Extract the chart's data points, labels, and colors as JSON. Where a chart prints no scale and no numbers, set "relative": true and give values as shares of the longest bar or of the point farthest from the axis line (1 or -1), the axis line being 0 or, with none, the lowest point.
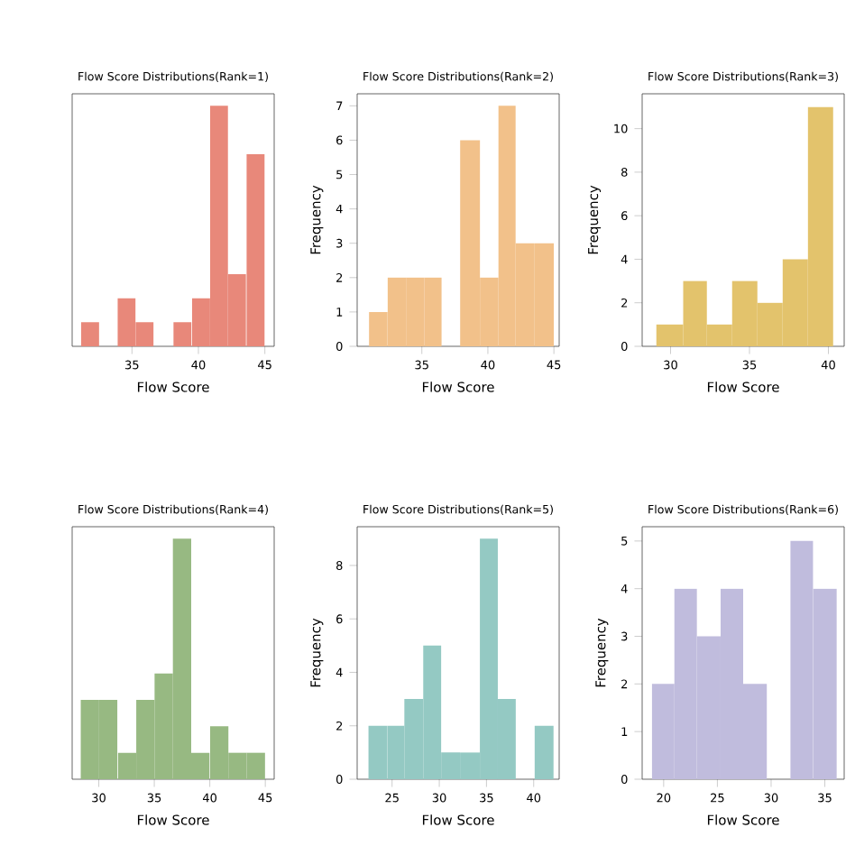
{
  "chart_data": [
    {
      "type": "bar",
      "title": "Flow Score Distributions(Rank=1)",
      "xlabel": "Flow Score",
      "relative": true,
      "color": "#e8887a",
      "x": [
        31.85,
        33.2,
        34.6,
        35.95,
        37.35,
        38.8,
        40.2,
        41.55,
        42.9,
        44.3
      ],
      "values": [
        0.1,
        0,
        0.2,
        0.1,
        0,
        0.1,
        0.2,
        1,
        0.3,
        0.8
      ],
      "xlim": [
        30.5,
        45.7
      ],
      "xticks": [
        35,
        40,
        45
      ]
    },
    {
      "type": "histogram",
      "title": "Flow Score Distributions(Rank=2)",
      "xlabel": "Flow Score",
      "ylabel": "Frequency",
      "color": "#f2c18a",
      "bins": [
        31.0,
        32.4,
        33.8,
        35.2,
        36.5,
        37.9,
        39.4,
        40.8,
        42.1,
        43.5,
        45.0
      ],
      "values": [
        1,
        2,
        2,
        2,
        0,
        6,
        2,
        7,
        3,
        3
      ],
      "xlim": [
        30.1,
        45.4
      ],
      "ylim": [
        0,
        7.35
      ],
      "xticks": [
        35,
        40,
        45
      ],
      "yticks": [
        0,
        1,
        2,
        3,
        4,
        5,
        6,
        7
      ]
    },
    {
      "type": "histogram",
      "title": "Flow Score Distributions(Rank=3)",
      "xlabel": "Flow Score",
      "ylabel": "Frequency",
      "color": "#e3c36c",
      "bins": [
        29.1,
        30.8,
        32.3,
        33.9,
        35.5,
        37.1,
        38.7,
        40.3
      ],
      "values": [
        1,
        3,
        1,
        3,
        2,
        4,
        11
      ],
      "xlim": [
        28.2,
        41.0
      ],
      "ylim": [
        0,
        11.6
      ],
      "xticks": [
        30,
        35,
        40
      ],
      "yticks": [
        0,
        2,
        4,
        6,
        8,
        10
      ]
    },
    {
      "type": "bar",
      "title": "Flow Score Distributions(Rank=4)",
      "xlabel": "Flow Score",
      "relative": true,
      "color": "#97b982",
      "x": [
        29.2,
        30.85,
        32.55,
        34.2,
        35.85,
        37.5,
        39.15,
        40.85,
        42.5,
        44.15
      ],
      "values": [
        0.33,
        0.33,
        0.11,
        0.33,
        0.44,
        1,
        0.11,
        0.22,
        0.11,
        0.11
      ],
      "xlim": [
        27.6,
        45.8
      ],
      "xticks": [
        30,
        35,
        40,
        45
      ]
    },
    {
      "type": "histogram",
      "title": "Flow Score Distributions(Rank=5)",
      "xlabel": "Flow Score",
      "ylabel": "Frequency",
      "color": "#94c9c3",
      "bins": [
        22.5,
        24.5,
        26.3,
        28.3,
        30.2,
        32.2,
        34.3,
        36.2,
        38.1,
        40.1,
        42.1
      ],
      "values": [
        2,
        2,
        3,
        5,
        1,
        1,
        9,
        3,
        0,
        2
      ],
      "xlim": [
        21.3,
        42.7
      ],
      "ylim": [
        0,
        9.45
      ],
      "xticks": [
        25,
        30,
        35,
        40
      ],
      "yticks": [
        0,
        2,
        4,
        6,
        8
      ]
    },
    {
      "type": "histogram",
      "title": "Flow Score Distributions(Rank=6)",
      "xlabel": "Flow Score",
      "ylabel": "Frequency",
      "color": "#c0bcdd",
      "bins": [
        18.9,
        21.0,
        23.1,
        25.3,
        27.4,
        29.6,
        31.8,
        33.9,
        36.1
      ],
      "values": [
        2,
        4,
        3,
        4,
        2,
        0,
        5,
        4
      ],
      "xlim": [
        18.0,
        36.8
      ],
      "ylim": [
        0,
        5.3
      ],
      "xticks": [
        20,
        25,
        30,
        35
      ],
      "yticks": [
        0,
        1,
        2,
        3,
        4,
        5
      ]
    }
  ]
}
